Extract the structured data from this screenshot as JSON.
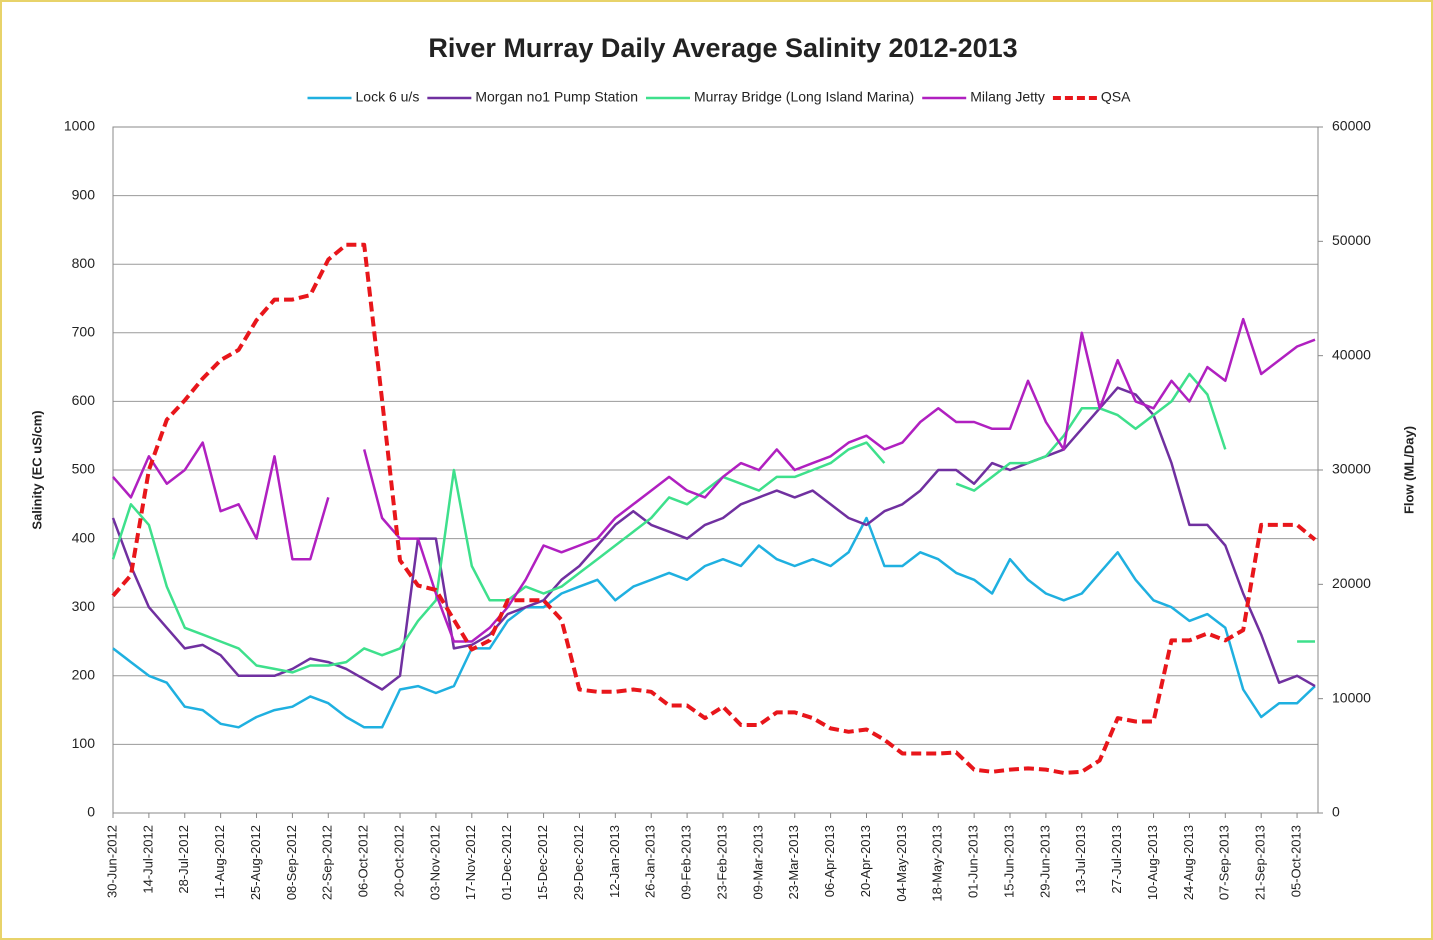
{
  "chart_data": {
    "type": "line",
    "title": "River Murray Daily Average Salinity 2012-2013",
    "y_label": "Salinity (EC uS/cm)",
    "y2_label": "Flow (ML/Day)",
    "categories": [
      "30-Jun-2012",
      null,
      "14-Jul-2012",
      null,
      "28-Jul-2012",
      null,
      "11-Aug-2012",
      null,
      "25-Aug-2012",
      null,
      "08-Sep-2012",
      null,
      "22-Sep-2012",
      null,
      "06-Oct-2012",
      null,
      "20-Oct-2012",
      null,
      "03-Nov-2012",
      null,
      "17-Nov-2012",
      null,
      "01-Dec-2012",
      null,
      "15-Dec-2012",
      null,
      "29-Dec-2012",
      null,
      "12-Jan-2013",
      null,
      "26-Jan-2013",
      null,
      "09-Feb-2013",
      null,
      "23-Feb-2013",
      null,
      "09-Mar-2013",
      null,
      "23-Mar-2013",
      null,
      "06-Apr-2013",
      null,
      "20-Apr-2013",
      null,
      "04-May-2013",
      null,
      "18-May-2013",
      null,
      "01-Jun-2013",
      null,
      "15-Jun-2013",
      null,
      "29-Jun-2013",
      null,
      "13-Jul-2013",
      null,
      "27-Jul-2013",
      null,
      "10-Aug-2013",
      null,
      "24-Aug-2013",
      null,
      "07-Sep-2013",
      null,
      "21-Sep-2013",
      null,
      "05-Oct-2013",
      null
    ],
    "series": [
      {
        "name": "Lock 6 u/s",
        "color": "#1fb0e0",
        "values": [
          240,
          220,
          200,
          190,
          155,
          150,
          130,
          125,
          140,
          150,
          155,
          170,
          160,
          140,
          125,
          125,
          180,
          185,
          175,
          185,
          240,
          240,
          280,
          300,
          300,
          320,
          330,
          340,
          310,
          330,
          340,
          350,
          340,
          360,
          370,
          360,
          390,
          370,
          360,
          370,
          360,
          380,
          430,
          360,
          360,
          380,
          370,
          350,
          340,
          320,
          370,
          340,
          320,
          310,
          320,
          350,
          380,
          340,
          310,
          300,
          280,
          290,
          270,
          180,
          140,
          160,
          160,
          185
        ]
      },
      {
        "name": "Morgan no1 Pump Station",
        "color": "#7030a0",
        "values": [
          430,
          360,
          300,
          270,
          240,
          245,
          230,
          200,
          200,
          200,
          210,
          225,
          220,
          210,
          195,
          180,
          200,
          400,
          400,
          240,
          245,
          260,
          290,
          300,
          310,
          340,
          360,
          390,
          420,
          440,
          420,
          410,
          400,
          420,
          430,
          450,
          460,
          470,
          460,
          470,
          450,
          430,
          420,
          440,
          450,
          470,
          500,
          500,
          480,
          510,
          500,
          510,
          520,
          530,
          560,
          590,
          620,
          610,
          580,
          510,
          420,
          420,
          390,
          320,
          260,
          190,
          200,
          185
        ]
      },
      {
        "name": "Murray Bridge (Long Island Marina)",
        "color": "#3ee08c",
        "values": [
          370,
          450,
          420,
          330,
          270,
          260,
          250,
          240,
          215,
          210,
          205,
          215,
          215,
          220,
          240,
          230,
          240,
          280,
          310,
          500,
          360,
          310,
          310,
          330,
          320,
          330,
          350,
          370,
          390,
          410,
          430,
          460,
          450,
          470,
          490,
          480,
          470,
          490,
          490,
          500,
          510,
          530,
          540,
          510,
          null,
          null,
          null,
          480,
          470,
          490,
          510,
          510,
          520,
          550,
          590,
          590,
          580,
          560,
          580,
          600,
          640,
          610,
          530,
          null,
          null,
          null,
          250,
          250
        ]
      },
      {
        "name": "Milang Jetty",
        "color": "#b020c0",
        "values": [
          490,
          460,
          520,
          480,
          500,
          540,
          440,
          450,
          400,
          520,
          370,
          370,
          460,
          null,
          530,
          430,
          400,
          400,
          320,
          250,
          250,
          270,
          300,
          340,
          390,
          380,
          390,
          400,
          430,
          450,
          470,
          490,
          470,
          460,
          490,
          510,
          500,
          530,
          500,
          510,
          520,
          540,
          550,
          530,
          540,
          570,
          590,
          570,
          570,
          560,
          560,
          630,
          570,
          530,
          700,
          590,
          660,
          600,
          590,
          630,
          600,
          650,
          630,
          720,
          640,
          660,
          680,
          690
        ]
      },
      {
        "name": "QSA",
        "color": "#e8161b",
        "axis": "y2",
        "dashed": true,
        "values": [
          19000,
          20800,
          30000,
          34400,
          36100,
          38000,
          39600,
          40500,
          43100,
          44900,
          44900,
          45300,
          48400,
          49700,
          49700,
          36100,
          22100,
          19900,
          19500,
          16900,
          14300,
          15100,
          18600,
          18600,
          18600,
          16900,
          10800,
          10600,
          10600,
          10800,
          10600,
          9400,
          9400,
          8300,
          9300,
          7700,
          7700,
          8800,
          8800,
          8300,
          7400,
          7100,
          7300,
          6400,
          5200,
          5200,
          5200,
          5300,
          3800,
          3600,
          3800,
          3900,
          3800,
          3500,
          3600,
          4600,
          8300,
          8000,
          8000,
          15100,
          15100,
          15700,
          15100,
          16000,
          25200,
          25200,
          25200,
          23900
        ]
      }
    ],
    "ylim": [
      0,
      1000
    ],
    "yticks": [
      0,
      100,
      200,
      300,
      400,
      500,
      600,
      700,
      800,
      900,
      1000
    ],
    "y2lim": [
      0,
      60000
    ],
    "y2ticks": [
      0,
      10000,
      20000,
      30000,
      40000,
      50000,
      60000
    ],
    "grid": true,
    "legend": "top"
  }
}
